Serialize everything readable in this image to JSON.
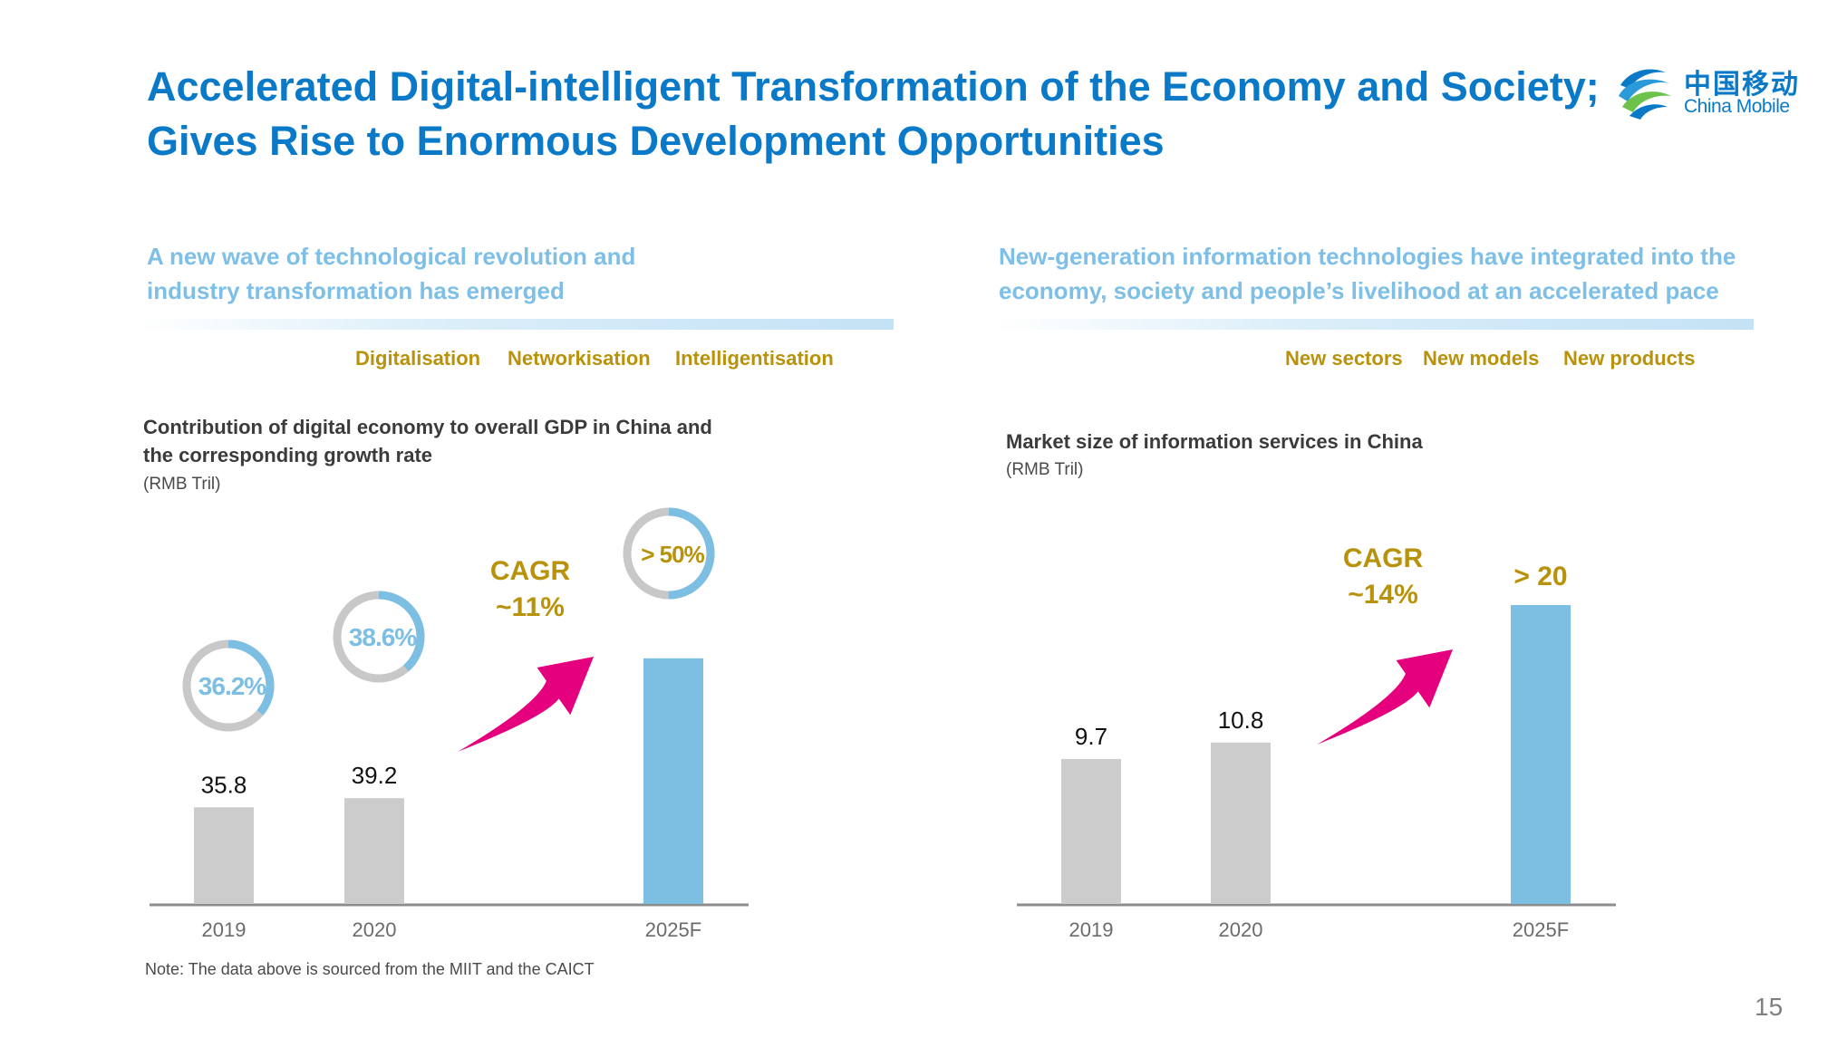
{
  "header": {
    "title_line1": "Accelerated Digital-intelligent Transformation of the Economy and Society;",
    "title_line2": "Gives Rise to Enormous Development Opportunities"
  },
  "logo": {
    "name_cn": "中国移动",
    "name_en": "China Mobile"
  },
  "left_panel": {
    "heading_line1": "A new wave of technological revolution and",
    "heading_line2": "industry transformation has emerged",
    "tags": [
      "Digitalisation",
      "Networkisation",
      "Intelligentisation"
    ]
  },
  "right_panel": {
    "heading_line1": "New-generation information technologies have integrated into the",
    "heading_line2": "economy, society and people’s livelihood at an accelerated pace",
    "tags": [
      "New sectors",
      "New models",
      "New products"
    ]
  },
  "chart_data": [
    {
      "type": "bar",
      "title_line1": "Contribution of digital economy to overall GDP in China and",
      "title_line2": "the corresponding growth rate",
      "unit": "(RMB Tril)",
      "categories": [
        "2019",
        "2020",
        "2025F"
      ],
      "values": [
        35.8,
        39.2,
        91
      ],
      "value_labels": [
        "35.8",
        "39.2",
        ""
      ],
      "gdp_share": [
        36.2,
        38.6,
        50
      ],
      "gdp_share_labels": [
        "36.2%",
        "38.6%",
        "> 50%"
      ],
      "cagr_line1": "CAGR",
      "cagr_line2": "~11%",
      "ylim": [
        0,
        100
      ],
      "colors": {
        "actual": "#cccccc",
        "forecast": "#7dbee3",
        "ring_track": "#c8c8c8",
        "ring_fill": "#7dbee3",
        "arrow": "#e5007e",
        "accent_text": "#b8920a",
        "ring_text": "#7dbee3"
      }
    },
    {
      "type": "bar",
      "title_line1": "Market size of information services in China",
      "unit": "(RMB Tril)",
      "categories": [
        "2019",
        "2020",
        "2025F"
      ],
      "values": [
        9.7,
        10.8,
        20
      ],
      "value_labels": [
        "9.7",
        "10.8",
        "> 20"
      ],
      "cagr_line1": "CAGR",
      "cagr_line2": "~14%",
      "ylim": [
        0,
        20
      ],
      "colors": {
        "actual": "#cccccc",
        "forecast": "#7dbee3",
        "arrow": "#e5007e",
        "accent_text": "#b8920a"
      }
    }
  ],
  "footer": {
    "note": "Note: The data above is sourced from the MIIT and the CAICT",
    "page_number": "15"
  }
}
